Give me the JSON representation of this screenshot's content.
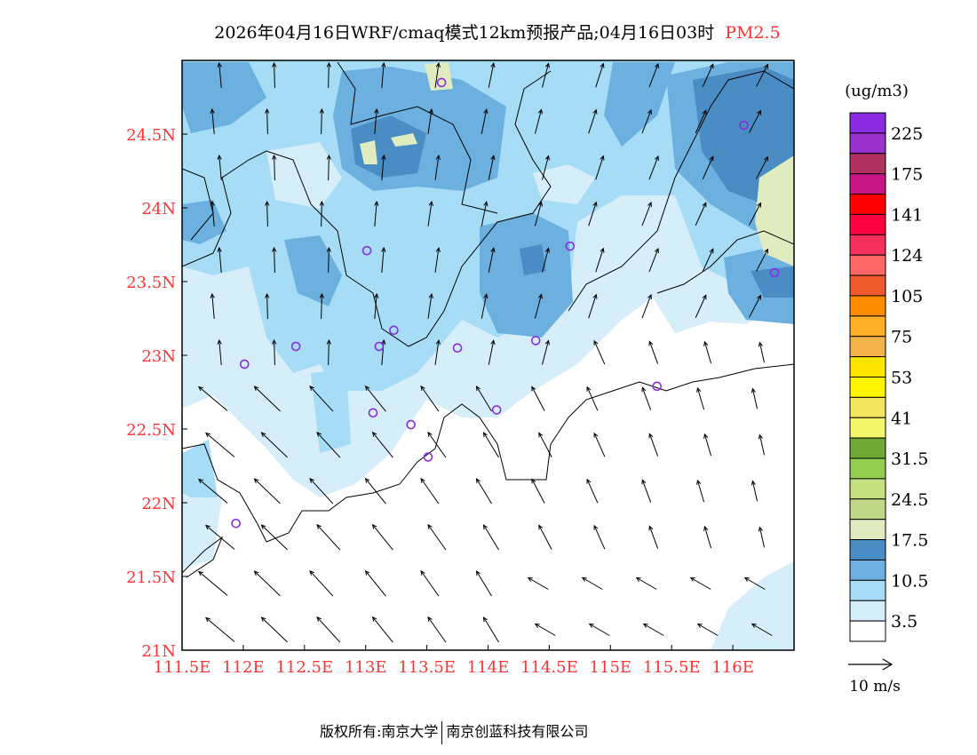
{
  "title": {
    "main": "2026年04月16日WRF/cmaq模式12km预报产品;04月16日03时",
    "species": "PM2.5"
  },
  "map": {
    "lon_range": [
      111.5,
      116.5
    ],
    "lat_range": [
      21.0,
      25.0
    ],
    "lon_ticks": [
      "111.5E",
      "112E",
      "112.5E",
      "113E",
      "113.5E",
      "114E",
      "114.5E",
      "115E",
      "115.5E",
      "116E"
    ],
    "lon_values": [
      111.5,
      112,
      112.5,
      113,
      113.5,
      114,
      114.5,
      115,
      115.5,
      116
    ],
    "lat_ticks": [
      "24.5N",
      "24N",
      "23.5N",
      "23N",
      "22.5N",
      "22N",
      "21.5N",
      "21N"
    ],
    "lat_values": [
      24.5,
      24,
      23.5,
      23,
      22.5,
      22,
      21.5,
      21
    ],
    "tick_color": "#ff3333",
    "stations": [
      [
        113.62,
        24.85
      ],
      [
        116.09,
        24.56
      ],
      [
        113.01,
        23.71
      ],
      [
        114.67,
        23.74
      ],
      [
        116.34,
        23.56
      ],
      [
        112.43,
        23.06
      ],
      [
        112.01,
        22.94
      ],
      [
        113.11,
        23.06
      ],
      [
        113.23,
        23.17
      ],
      [
        113.75,
        23.05
      ],
      [
        114.39,
        23.1
      ],
      [
        115.38,
        22.79
      ],
      [
        113.06,
        22.61
      ],
      [
        114.07,
        22.63
      ],
      [
        113.37,
        22.53
      ],
      [
        113.51,
        22.31
      ],
      [
        111.94,
        21.86
      ]
    ],
    "station_color": "#8a2be2"
  },
  "colorbar": {
    "unit": "(ug/m3)",
    "colors": [
      "#8a2be2",
      "#9932cc",
      "#b03060",
      "#c71585",
      "#ff0000",
      "#ff0040",
      "#f5305a",
      "#ff6666",
      "#ee5a2e",
      "#ff8c00",
      "#ffb028",
      "#f5b44a",
      "#ffe600",
      "#fff500",
      "#f2e660",
      "#f3f76a",
      "#6faa38",
      "#92cf50",
      "#c4e080",
      "#c0d888",
      "#e0ebc0",
      "#4a8cc4",
      "#6cb0e0",
      "#a6dcf5",
      "#d6eefa",
      "#ffffff"
    ],
    "labels": [
      "225",
      "175",
      "141",
      "124",
      "105",
      "75",
      "53",
      "41",
      "31.5",
      "24.5",
      "17.5",
      "10.5",
      "3.5"
    ]
  },
  "wind_legend": {
    "label": "10 m/s"
  },
  "footer": {
    "left": "版权所有:南京大学",
    "right": "南京创蓝科技有限公司"
  }
}
